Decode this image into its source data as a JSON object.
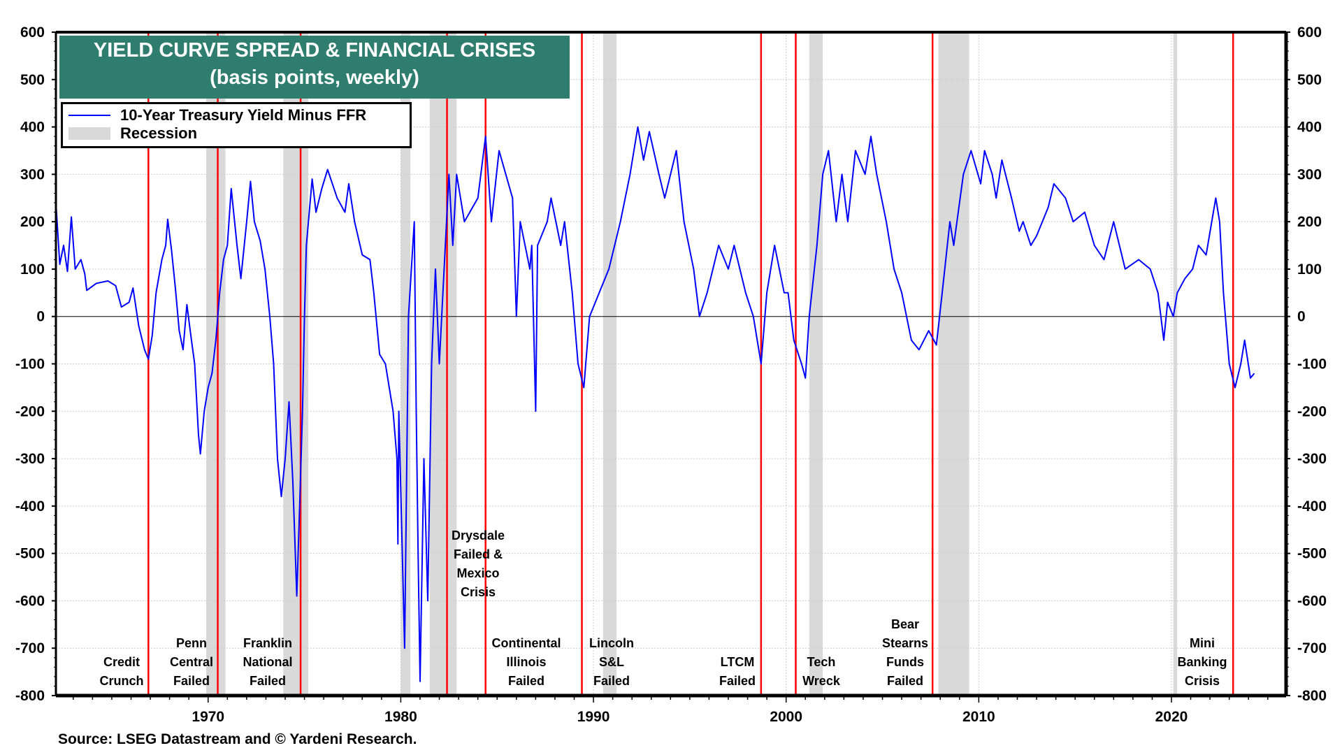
{
  "chart_data": {
    "type": "line",
    "title": "YIELD CURVE SPREAD & FINANCIAL CRISES",
    "subtitle": "(basis points, weekly)",
    "xlim": [
      1962.1,
      2025.95
    ],
    "ylim": [
      -800,
      600
    ],
    "yticks": [
      600,
      500,
      400,
      300,
      200,
      100,
      0,
      -100,
      -200,
      -300,
      -400,
      -500,
      -600,
      -700,
      -800
    ],
    "xticks": [
      1970,
      1980,
      1990,
      2000,
      2010,
      2020
    ],
    "grid": true,
    "legend_placement": "top-left",
    "dual_y_axis": true,
    "colors": {
      "series": "#0000ff",
      "crisis_line": "#ff0000",
      "recession": "#d9d9d9",
      "title_bg": "#2e7d6e"
    },
    "legend": {
      "series_label": "10-Year Treasury Yield Minus FFR",
      "recession_label": "Recession"
    },
    "series": [
      {
        "name": "10-Year Treasury Yield Minus FFR",
        "points": [
          [
            1962.1,
            240
          ],
          [
            1962.3,
            110
          ],
          [
            1962.5,
            150
          ],
          [
            1962.7,
            95
          ],
          [
            1962.9,
            210
          ],
          [
            1963.1,
            100
          ],
          [
            1963.4,
            120
          ],
          [
            1963.6,
            90
          ],
          [
            1963.7,
            55
          ],
          [
            1964.2,
            70
          ],
          [
            1964.8,
            75
          ],
          [
            1965.2,
            65
          ],
          [
            1965.5,
            20
          ],
          [
            1965.9,
            30
          ],
          [
            1966.1,
            60
          ],
          [
            1966.4,
            -20
          ],
          [
            1966.7,
            -70
          ],
          [
            1966.9,
            -90
          ],
          [
            1967.1,
            -40
          ],
          [
            1967.3,
            50
          ],
          [
            1967.6,
            120
          ],
          [
            1967.8,
            150
          ],
          [
            1967.9,
            205
          ],
          [
            1968.1,
            140
          ],
          [
            1968.3,
            60
          ],
          [
            1968.5,
            -30
          ],
          [
            1968.7,
            -70
          ],
          [
            1968.9,
            25
          ],
          [
            1969.1,
            -40
          ],
          [
            1969.3,
            -100
          ],
          [
            1969.5,
            -250
          ],
          [
            1969.6,
            -290
          ],
          [
            1969.8,
            -200
          ],
          [
            1970.0,
            -150
          ],
          [
            1970.2,
            -120
          ],
          [
            1970.4,
            -50
          ],
          [
            1970.6,
            50
          ],
          [
            1970.8,
            120
          ],
          [
            1971.0,
            150
          ],
          [
            1971.2,
            270
          ],
          [
            1971.5,
            150
          ],
          [
            1971.7,
            80
          ],
          [
            1972.0,
            200
          ],
          [
            1972.2,
            285
          ],
          [
            1972.4,
            200
          ],
          [
            1972.7,
            160
          ],
          [
            1972.95,
            100
          ],
          [
            1973.2,
            0
          ],
          [
            1973.4,
            -100
          ],
          [
            1973.6,
            -300
          ],
          [
            1973.8,
            -380
          ],
          [
            1974.0,
            -300
          ],
          [
            1974.2,
            -180
          ],
          [
            1974.4,
            -350
          ],
          [
            1974.6,
            -590
          ],
          [
            1974.75,
            -400
          ],
          [
            1974.9,
            -200
          ],
          [
            1975.0,
            0
          ],
          [
            1975.1,
            150
          ],
          [
            1975.4,
            290
          ],
          [
            1975.6,
            220
          ],
          [
            1975.9,
            270
          ],
          [
            1976.2,
            310
          ],
          [
            1976.7,
            250
          ],
          [
            1977.1,
            220
          ],
          [
            1977.3,
            280
          ],
          [
            1977.6,
            200
          ],
          [
            1978.0,
            130
          ],
          [
            1978.4,
            120
          ],
          [
            1978.6,
            50
          ],
          [
            1978.9,
            -80
          ],
          [
            1979.2,
            -100
          ],
          [
            1979.6,
            -200
          ],
          [
            1979.8,
            -300
          ],
          [
            1979.85,
            -480
          ],
          [
            1979.9,
            -200
          ],
          [
            1980.2,
            -700
          ],
          [
            1980.4,
            0
          ],
          [
            1980.7,
            200
          ],
          [
            1980.8,
            -200
          ],
          [
            1980.9,
            -500
          ],
          [
            1981.0,
            -770
          ],
          [
            1981.2,
            -300
          ],
          [
            1981.4,
            -600
          ],
          [
            1981.6,
            -100
          ],
          [
            1981.8,
            100
          ],
          [
            1982.0,
            -100
          ],
          [
            1982.5,
            300
          ],
          [
            1982.7,
            150
          ],
          [
            1982.9,
            300
          ],
          [
            1983.3,
            200
          ],
          [
            1984.0,
            250
          ],
          [
            1984.4,
            380
          ],
          [
            1984.7,
            200
          ],
          [
            1985.1,
            350
          ],
          [
            1985.8,
            250
          ],
          [
            1986.0,
            0
          ],
          [
            1986.2,
            200
          ],
          [
            1986.7,
            100
          ],
          [
            1986.8,
            150
          ],
          [
            1987.0,
            -200
          ],
          [
            1987.1,
            150
          ],
          [
            1987.6,
            200
          ],
          [
            1987.8,
            250
          ],
          [
            1988.3,
            150
          ],
          [
            1988.5,
            200
          ],
          [
            1988.9,
            50
          ],
          [
            1989.2,
            -100
          ],
          [
            1989.5,
            -150
          ],
          [
            1989.8,
            0
          ],
          [
            1990.3,
            50
          ],
          [
            1990.8,
            100
          ],
          [
            1991.4,
            200
          ],
          [
            1991.9,
            300
          ],
          [
            1992.3,
            400
          ],
          [
            1992.6,
            330
          ],
          [
            1992.9,
            390
          ],
          [
            1993.4,
            300
          ],
          [
            1993.7,
            250
          ],
          [
            1994.3,
            350
          ],
          [
            1994.7,
            200
          ],
          [
            1995.2,
            100
          ],
          [
            1995.5,
            0
          ],
          [
            1995.9,
            50
          ],
          [
            1996.5,
            150
          ],
          [
            1997.0,
            100
          ],
          [
            1997.3,
            150
          ],
          [
            1997.9,
            50
          ],
          [
            1998.3,
            0
          ],
          [
            1998.7,
            -100
          ],
          [
            1999.0,
            50
          ],
          [
            1999.4,
            150
          ],
          [
            1999.9,
            50
          ],
          [
            2000.1,
            50
          ],
          [
            2000.4,
            -50
          ],
          [
            2000.8,
            -100
          ],
          [
            2001.0,
            -130
          ],
          [
            2001.2,
            0
          ],
          [
            2001.6,
            150
          ],
          [
            2001.9,
            300
          ],
          [
            2002.2,
            350
          ],
          [
            2002.6,
            200
          ],
          [
            2002.9,
            300
          ],
          [
            2003.2,
            200
          ],
          [
            2003.6,
            350
          ],
          [
            2004.1,
            300
          ],
          [
            2004.4,
            380
          ],
          [
            2004.7,
            300
          ],
          [
            2005.2,
            200
          ],
          [
            2005.6,
            100
          ],
          [
            2006.0,
            50
          ],
          [
            2006.5,
            -50
          ],
          [
            2006.9,
            -70
          ],
          [
            2007.4,
            -30
          ],
          [
            2007.8,
            -60
          ],
          [
            2008.1,
            50
          ],
          [
            2008.5,
            200
          ],
          [
            2008.7,
            150
          ],
          [
            2009.2,
            300
          ],
          [
            2009.6,
            350
          ],
          [
            2010.1,
            280
          ],
          [
            2010.3,
            350
          ],
          [
            2010.7,
            300
          ],
          [
            2010.9,
            250
          ],
          [
            2011.2,
            330
          ],
          [
            2011.7,
            250
          ],
          [
            2012.1,
            180
          ],
          [
            2012.3,
            200
          ],
          [
            2012.7,
            150
          ],
          [
            2013.0,
            170
          ],
          [
            2013.6,
            230
          ],
          [
            2013.9,
            280
          ],
          [
            2014.5,
            250
          ],
          [
            2014.9,
            200
          ],
          [
            2015.5,
            220
          ],
          [
            2016.0,
            150
          ],
          [
            2016.5,
            120
          ],
          [
            2017.0,
            200
          ],
          [
            2017.6,
            100
          ],
          [
            2018.3,
            120
          ],
          [
            2018.9,
            100
          ],
          [
            2019.3,
            50
          ],
          [
            2019.6,
            -50
          ],
          [
            2019.8,
            30
          ],
          [
            2020.1,
            0
          ],
          [
            2020.3,
            50
          ],
          [
            2020.7,
            80
          ],
          [
            2021.1,
            100
          ],
          [
            2021.4,
            150
          ],
          [
            2021.8,
            130
          ],
          [
            2022.3,
            250
          ],
          [
            2022.5,
            200
          ],
          [
            2022.7,
            50
          ],
          [
            2023.0,
            -100
          ],
          [
            2023.3,
            -150
          ],
          [
            2023.6,
            -100
          ],
          [
            2023.8,
            -50
          ],
          [
            2024.1,
            -130
          ],
          [
            2024.3,
            -120
          ]
        ]
      }
    ],
    "recessions": [
      [
        1969.9,
        1970.9
      ],
      [
        1973.9,
        1975.2
      ],
      [
        1980.0,
        1980.5
      ],
      [
        1981.5,
        1982.9
      ],
      [
        1990.5,
        1991.2
      ],
      [
        2001.2,
        2001.9
      ],
      [
        2007.9,
        2009.5
      ],
      [
        2020.1,
        2020.3
      ]
    ],
    "crises": [
      {
        "year": 1966.9,
        "label": [
          "Credit",
          "Crunch"
        ]
      },
      {
        "year": 1970.5,
        "label": [
          "Penn",
          "Central",
          "Failed"
        ]
      },
      {
        "year": 1974.8,
        "label": [
          "Franklin",
          "National",
          "Failed"
        ]
      },
      {
        "year": 1982.4,
        "label": [
          "Drysdale",
          "Failed &",
          "Mexico",
          "Crisis"
        ]
      },
      {
        "year": 1984.4,
        "label": [
          "Continental",
          "Illinois",
          "Failed"
        ]
      },
      {
        "year": 1989.4,
        "label": [
          "Lincoln",
          "S&L",
          "Failed"
        ]
      },
      {
        "year": 1998.7,
        "label": [
          "LTCM",
          "Failed"
        ]
      },
      {
        "year": 2000.5,
        "label": [
          "Tech",
          "Wreck"
        ]
      },
      {
        "year": 2007.6,
        "label": [
          "Bear",
          "Stearns",
          "Funds",
          "Failed"
        ]
      },
      {
        "year": 2023.2,
        "label": [
          "Mini",
          "Banking",
          "Crisis"
        ]
      }
    ]
  },
  "source": "Source: LSEG Datastream and © Yardeni Research."
}
